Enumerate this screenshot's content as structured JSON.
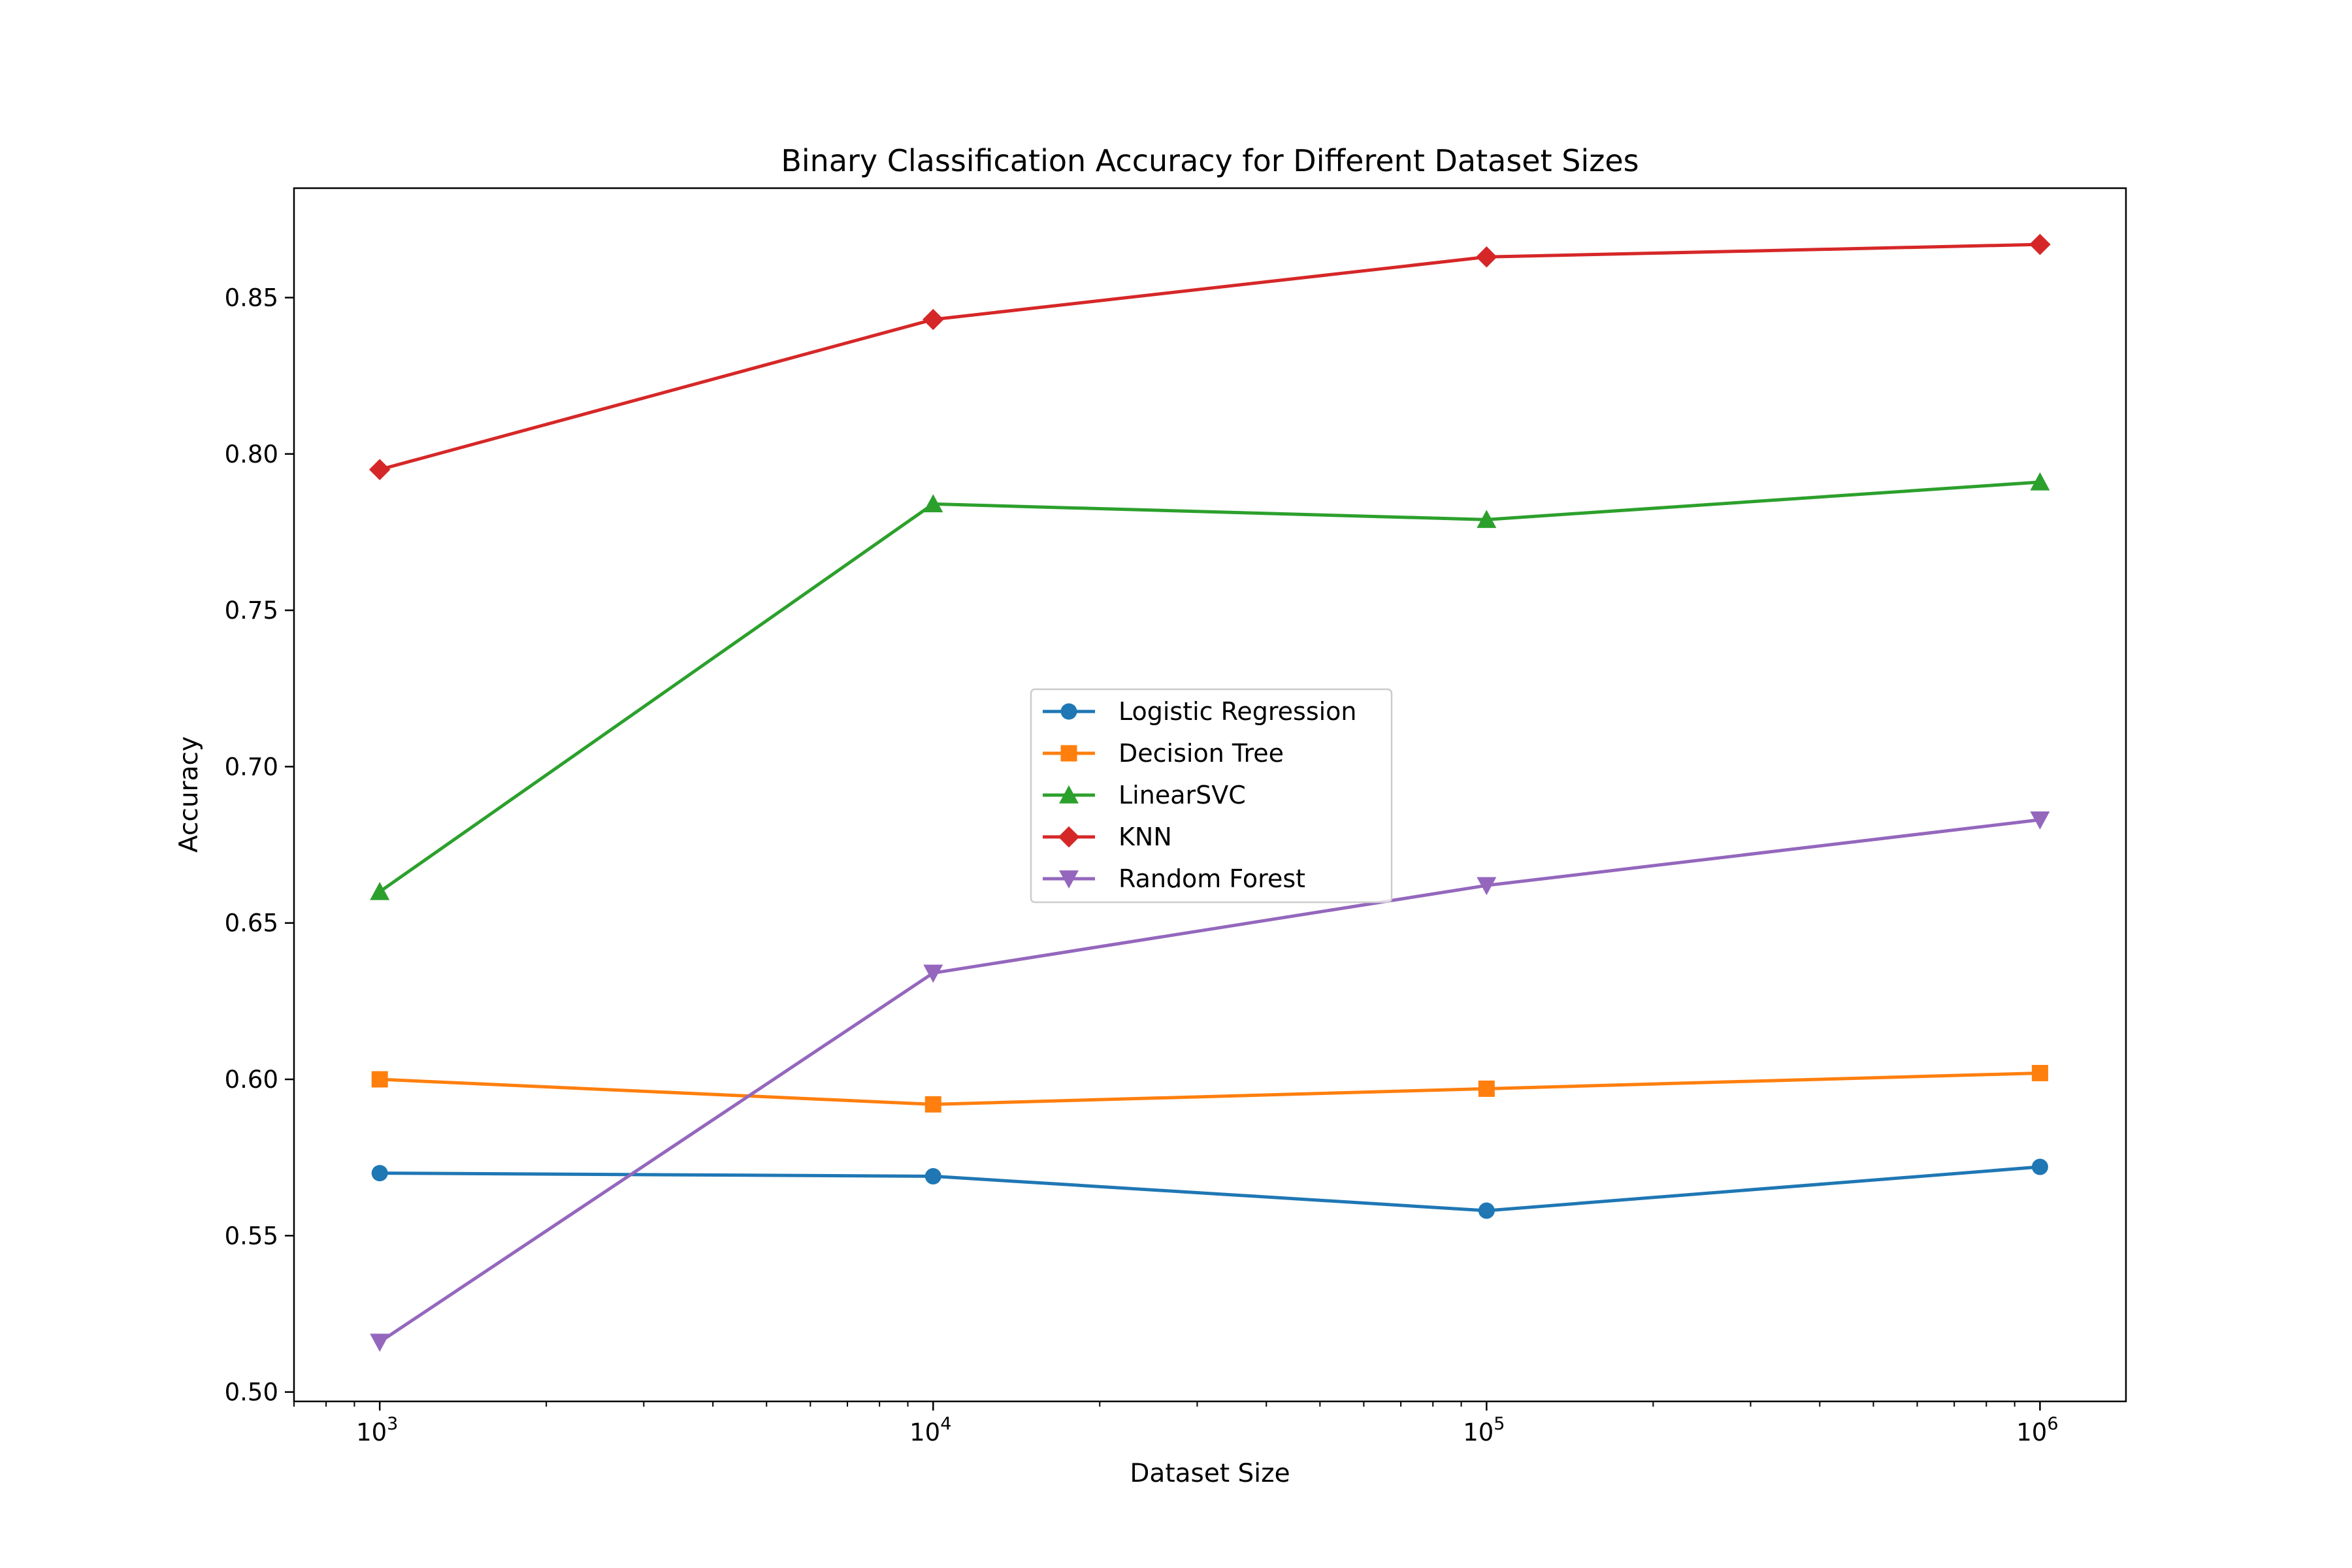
{
  "chart_data": {
    "type": "line",
    "title": "Binary Classification Accuracy for Different Dataset Sizes",
    "xlabel": "Dataset Size",
    "ylabel": "Accuracy",
    "xscale": "log",
    "x": [
      1000,
      10000,
      100000,
      1000000
    ],
    "x_tick_labels": [
      {
        "base": "10",
        "exp": "3"
      },
      {
        "base": "10",
        "exp": "4"
      },
      {
        "base": "10",
        "exp": "5"
      },
      {
        "base": "10",
        "exp": "6"
      }
    ],
    "y_ticks": [
      "0.50",
      "0.55",
      "0.60",
      "0.65",
      "0.70",
      "0.75",
      "0.80",
      "0.85"
    ],
    "xlim": [
      700,
      1430000
    ],
    "ylim": [
      0.497,
      0.885
    ],
    "legend_position": "center",
    "grid": false,
    "series": [
      {
        "name": "Logistic Regression",
        "color": "#1f77b4",
        "marker": "circle",
        "values": [
          0.57,
          0.569,
          0.558,
          0.572
        ]
      },
      {
        "name": "Decision Tree",
        "color": "#ff7f0e",
        "marker": "square",
        "values": [
          0.6,
          0.592,
          0.597,
          0.602
        ]
      },
      {
        "name": "LinearSVC",
        "color": "#2ca02c",
        "marker": "triangle-up",
        "values": [
          0.66,
          0.784,
          0.779,
          0.791
        ]
      },
      {
        "name": "KNN",
        "color": "#d62728",
        "marker": "diamond",
        "values": [
          0.795,
          0.843,
          0.863,
          0.867
        ]
      },
      {
        "name": "Random Forest",
        "color": "#9467bd",
        "marker": "triangle-down",
        "values": [
          0.516,
          0.634,
          0.662,
          0.683
        ]
      }
    ]
  }
}
